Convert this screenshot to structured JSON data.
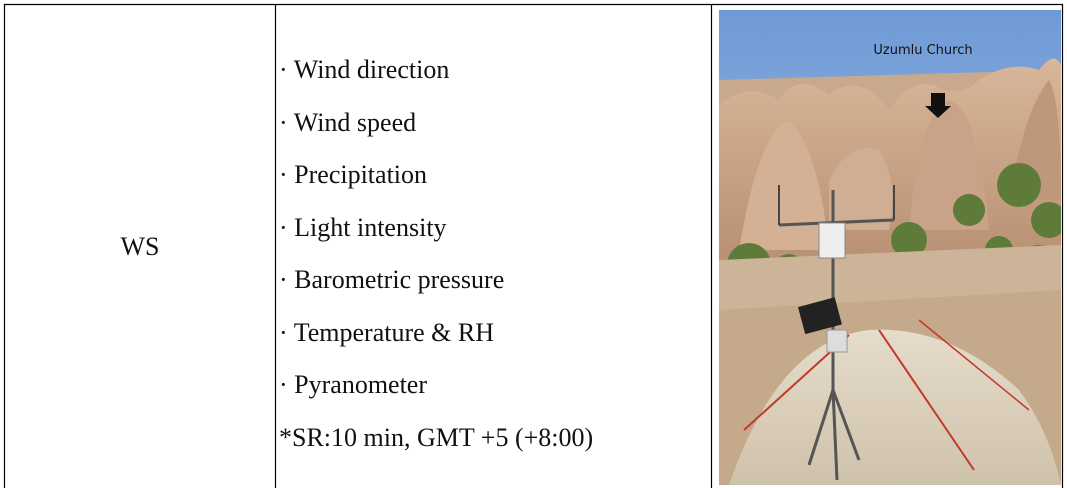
{
  "table": {
    "rows": [
      [
        "WS",
        {
          "items": [
            "· Wind direction",
            "· Wind speed",
            "· Precipitation",
            "· Light intensity",
            "· Barometric pressure",
            "· Temperature & RH",
            "· Pyranometer"
          ],
          "note": "*SR:10 min, GMT +5 (+8:00)"
        },
        {
          "label": "Uzumlu Church"
        }
      ]
    ]
  }
}
